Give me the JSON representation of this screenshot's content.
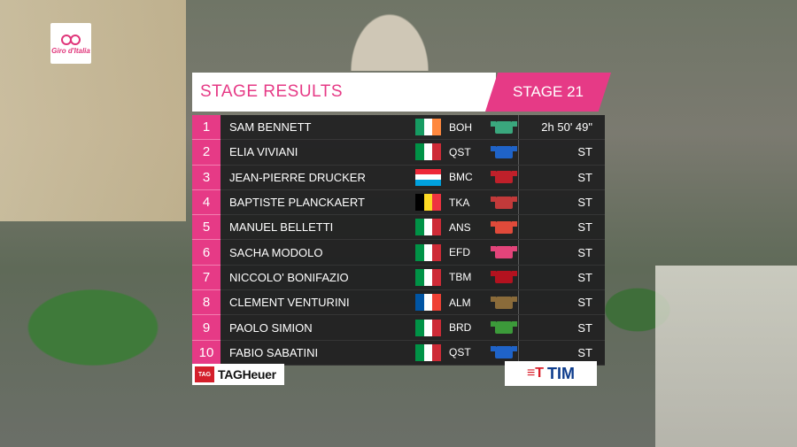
{
  "brand": {
    "giro_logo_text": "Giro d'Italia"
  },
  "header": {
    "title": "STAGE RESULTS",
    "stage": "STAGE 21"
  },
  "rows": [
    {
      "pos": "1",
      "name": "SAM BENNETT",
      "team": "BOH",
      "time": "2h 50' 49\"",
      "flag": "ireland",
      "jersey_color": "#3aa77d"
    },
    {
      "pos": "2",
      "name": "ELIA VIVIANI",
      "team": "QST",
      "time": "ST",
      "flag": "italy",
      "jersey_color": "#1f63c8"
    },
    {
      "pos": "3",
      "name": "JEAN-PIERRE DRUCKER",
      "team": "BMC",
      "time": "ST",
      "flag": "luxembourg",
      "jersey_color": "#c0202a"
    },
    {
      "pos": "4",
      "name": "BAPTISTE PLANCKAERT",
      "team": "TKA",
      "time": "ST",
      "flag": "belgium",
      "jersey_color": "#c23a3a"
    },
    {
      "pos": "5",
      "name": "MANUEL BELLETTI",
      "team": "ANS",
      "time": "ST",
      "flag": "italy",
      "jersey_color": "#e04a3a"
    },
    {
      "pos": "6",
      "name": "SACHA MODOLO",
      "team": "EFD",
      "time": "ST",
      "flag": "italy",
      "jersey_color": "#e2447a"
    },
    {
      "pos": "7",
      "name": "NICCOLO' BONIFAZIO",
      "team": "TBM",
      "time": "ST",
      "flag": "italy",
      "jersey_color": "#b3121f"
    },
    {
      "pos": "8",
      "name": "CLEMENT VENTURINI",
      "team": "ALM",
      "time": "ST",
      "flag": "france",
      "jersey_color": "#8a6b3a"
    },
    {
      "pos": "9",
      "name": "PAOLO SIMION",
      "team": "BRD",
      "time": "ST",
      "flag": "italy",
      "jersey_color": "#3c9a3a"
    },
    {
      "pos": "10",
      "name": "FABIO SABATINI",
      "team": "QST",
      "time": "ST",
      "flag": "italy",
      "jersey_color": "#1f63c8"
    }
  ],
  "sponsors": {
    "tag_mark": "TAG",
    "tag_word": "TAGHeuer",
    "tim_mark": "≡T",
    "tim_word": "TIM"
  }
}
